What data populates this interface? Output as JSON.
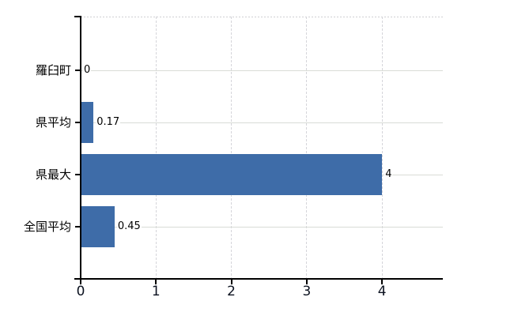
{
  "chart_data": {
    "type": "bar",
    "orientation": "horizontal",
    "title": "",
    "xlabel": "",
    "ylabel": "",
    "categories": [
      "羅臼町",
      "県平均",
      "県最大",
      "全国平均"
    ],
    "values": [
      0,
      0.17,
      4,
      0.45
    ],
    "value_labels": [
      "0",
      "0.17",
      "4",
      "0.45"
    ],
    "x_ticks": [
      0,
      1,
      2,
      3,
      4
    ],
    "x_tick_labels": [
      "0",
      "1",
      "2",
      "3",
      "4"
    ],
    "xlim": [
      0,
      4.8
    ],
    "grid": "on",
    "legend": "none",
    "colors": {
      "bar": "#3E6CA8",
      "horizontal_gridline": "#D9DCD6",
      "vertical_gridline": "#D5D5DA",
      "plot_top_border": "#CFCFD3",
      "axis": "#000000",
      "text": "#000000"
    }
  }
}
